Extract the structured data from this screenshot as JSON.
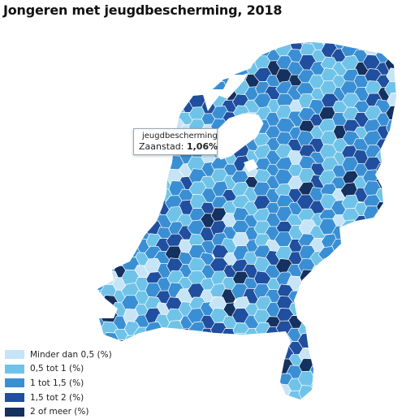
{
  "title": "Jongeren met jeugdbescherming, 2018",
  "tooltip": {
    "series_label": "jeugdbescherming",
    "region": "Zaanstad",
    "value": "1,06%"
  },
  "legend": [
    {
      "label": "Minder dan 0,5 (%)",
      "color": "#c6e4f6"
    },
    {
      "label": "0,5 tot 1 (%)",
      "color": "#6fc3e8"
    },
    {
      "label": "1 tot 1,5 (%)",
      "color": "#3a8fd4"
    },
    {
      "label": "1,5 tot 2 (%)",
      "color": "#1f4f9e"
    },
    {
      "label": "2 of meer (%)",
      "color": "#14315f"
    }
  ]
}
